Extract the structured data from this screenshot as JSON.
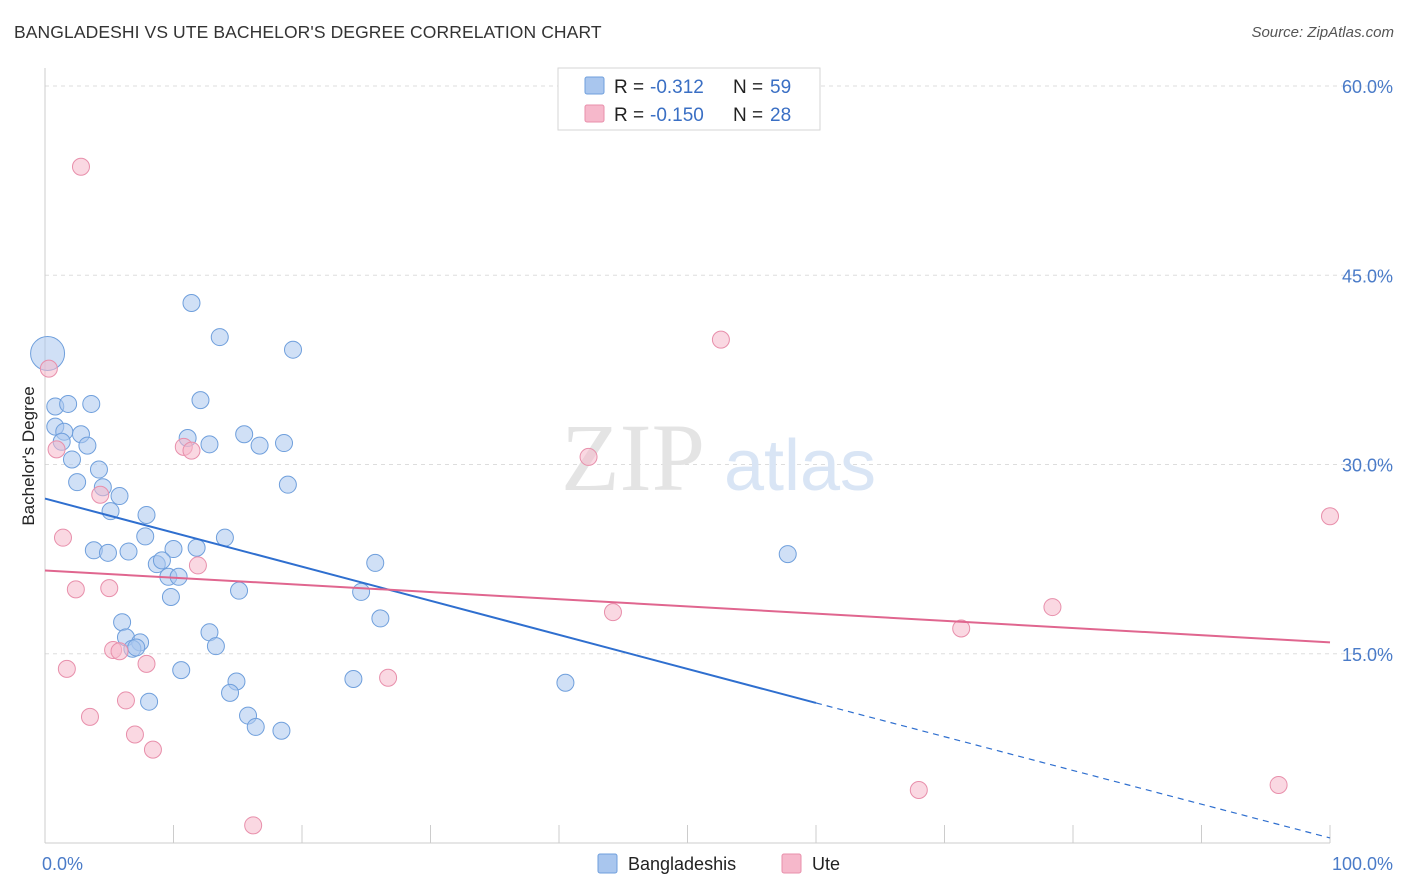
{
  "title": "BANGLADESHI VS UTE BACHELOR'S DEGREE CORRELATION CHART",
  "source": "Source: ZipAtlas.com",
  "watermark": {
    "zip": "ZIP",
    "atlas": "atlas"
  },
  "colors": {
    "blue_fill": "#a9c6ee",
    "blue_stroke": "#6f9fdc",
    "blue_line": "#2f6fcf",
    "pink_fill": "#f6b8cb",
    "pink_stroke": "#e88fab",
    "pink_line": "#e0668f",
    "grid": "#dddddd",
    "axis_text": "#4a7bc8"
  },
  "legend": {
    "series": [
      {
        "r_label": "R =",
        "r_value": "-0.312",
        "n_label": "N =",
        "n_value": "59"
      },
      {
        "r_label": "R =",
        "r_value": "-0.150",
        "n_label": "N =",
        "n_value": "28"
      }
    ]
  },
  "chart_data": {
    "type": "scatter",
    "title": "BANGLADESHI VS UTE BACHELOR'S DEGREE CORRELATION CHART",
    "xlabel": "",
    "ylabel": "Bachelor's Degree",
    "xlim": [
      0,
      100
    ],
    "ylim": [
      0,
      60
    ],
    "x_tick_labels": [
      "0.0%",
      "100.0%"
    ],
    "y_ticks": [
      15,
      30,
      45,
      60
    ],
    "y_tick_labels": [
      "15.0%",
      "30.0%",
      "45.0%",
      "60.0%"
    ],
    "legend_position": "top-center",
    "series": [
      {
        "name": "Bangladeshis",
        "r": -0.312,
        "n": 59,
        "trend": {
          "x0": 0,
          "y0": 27.3,
          "x1": 60,
          "y1": 11.1,
          "dashed_to_x": 100,
          "dashed_to_y": 0.4
        },
        "points": [
          {
            "x": 0.2,
            "y": 38.8,
            "big": true
          },
          {
            "x": 0.8,
            "y": 34.6
          },
          {
            "x": 1.8,
            "y": 34.8
          },
          {
            "x": 3.6,
            "y": 34.8
          },
          {
            "x": 0.8,
            "y": 33.0
          },
          {
            "x": 1.5,
            "y": 32.6
          },
          {
            "x": 2.8,
            "y": 32.4
          },
          {
            "x": 1.3,
            "y": 31.8
          },
          {
            "x": 3.3,
            "y": 31.5
          },
          {
            "x": 2.1,
            "y": 30.4
          },
          {
            "x": 4.2,
            "y": 29.6
          },
          {
            "x": 2.5,
            "y": 28.6
          },
          {
            "x": 4.5,
            "y": 28.2
          },
          {
            "x": 5.8,
            "y": 27.5
          },
          {
            "x": 5.1,
            "y": 26.3
          },
          {
            "x": 7.9,
            "y": 26.0
          },
          {
            "x": 3.8,
            "y": 23.2
          },
          {
            "x": 4.9,
            "y": 23.0
          },
          {
            "x": 6.5,
            "y": 23.1
          },
          {
            "x": 7.8,
            "y": 24.3
          },
          {
            "x": 10.0,
            "y": 23.3
          },
          {
            "x": 11.8,
            "y": 23.4
          },
          {
            "x": 14.0,
            "y": 24.2
          },
          {
            "x": 8.7,
            "y": 22.1
          },
          {
            "x": 9.1,
            "y": 22.4
          },
          {
            "x": 9.6,
            "y": 21.1
          },
          {
            "x": 10.4,
            "y": 21.1
          },
          {
            "x": 9.8,
            "y": 19.5
          },
          {
            "x": 15.1,
            "y": 20.0
          },
          {
            "x": 11.1,
            "y": 32.1
          },
          {
            "x": 12.8,
            "y": 31.6
          },
          {
            "x": 12.1,
            "y": 35.1
          },
          {
            "x": 15.5,
            "y": 32.4
          },
          {
            "x": 16.7,
            "y": 31.5
          },
          {
            "x": 18.6,
            "y": 31.7
          },
          {
            "x": 13.6,
            "y": 40.1
          },
          {
            "x": 11.4,
            "y": 42.8
          },
          {
            "x": 19.3,
            "y": 39.1
          },
          {
            "x": 18.9,
            "y": 28.4
          },
          {
            "x": 25.7,
            "y": 22.2
          },
          {
            "x": 24.6,
            "y": 19.9
          },
          {
            "x": 26.1,
            "y": 17.8
          },
          {
            "x": 6.0,
            "y": 17.5
          },
          {
            "x": 6.3,
            "y": 16.3
          },
          {
            "x": 7.4,
            "y": 15.9
          },
          {
            "x": 6.8,
            "y": 15.4
          },
          {
            "x": 7.1,
            "y": 15.5
          },
          {
            "x": 12.8,
            "y": 16.7
          },
          {
            "x": 13.3,
            "y": 15.6
          },
          {
            "x": 10.6,
            "y": 13.7
          },
          {
            "x": 14.9,
            "y": 12.8
          },
          {
            "x": 14.4,
            "y": 11.9
          },
          {
            "x": 8.1,
            "y": 11.2
          },
          {
            "x": 15.8,
            "y": 10.1
          },
          {
            "x": 16.4,
            "y": 9.2
          },
          {
            "x": 18.4,
            "y": 8.9
          },
          {
            "x": 24.0,
            "y": 13.0
          },
          {
            "x": 40.5,
            "y": 12.7
          },
          {
            "x": 57.8,
            "y": 22.9
          }
        ]
      },
      {
        "name": "Ute",
        "r": -0.15,
        "n": 28,
        "trend": {
          "x0": 0,
          "y0": 21.6,
          "x1": 100,
          "y1": 15.9
        },
        "points": [
          {
            "x": 0.3,
            "y": 37.6
          },
          {
            "x": 2.8,
            "y": 53.6
          },
          {
            "x": 0.9,
            "y": 31.2
          },
          {
            "x": 4.3,
            "y": 27.6
          },
          {
            "x": 1.4,
            "y": 24.2
          },
          {
            "x": 2.4,
            "y": 20.1
          },
          {
            "x": 5.0,
            "y": 20.2
          },
          {
            "x": 10.8,
            "y": 31.4
          },
          {
            "x": 11.4,
            "y": 31.1
          },
          {
            "x": 11.9,
            "y": 22.0
          },
          {
            "x": 5.3,
            "y": 15.3
          },
          {
            "x": 5.8,
            "y": 15.2
          },
          {
            "x": 7.9,
            "y": 14.2
          },
          {
            "x": 1.7,
            "y": 13.8
          },
          {
            "x": 6.3,
            "y": 11.3
          },
          {
            "x": 3.5,
            "y": 10.0
          },
          {
            "x": 7.0,
            "y": 8.6
          },
          {
            "x": 8.4,
            "y": 7.4
          },
          {
            "x": 16.2,
            "y": 1.4
          },
          {
            "x": 26.7,
            "y": 13.1
          },
          {
            "x": 42.3,
            "y": 30.6
          },
          {
            "x": 44.2,
            "y": 18.3
          },
          {
            "x": 52.6,
            "y": 39.9
          },
          {
            "x": 71.3,
            "y": 17.0
          },
          {
            "x": 68.0,
            "y": 4.2
          },
          {
            "x": 78.4,
            "y": 18.7
          },
          {
            "x": 96.0,
            "y": 4.6
          },
          {
            "x": 100.0,
            "y": 25.9
          }
        ]
      }
    ]
  }
}
